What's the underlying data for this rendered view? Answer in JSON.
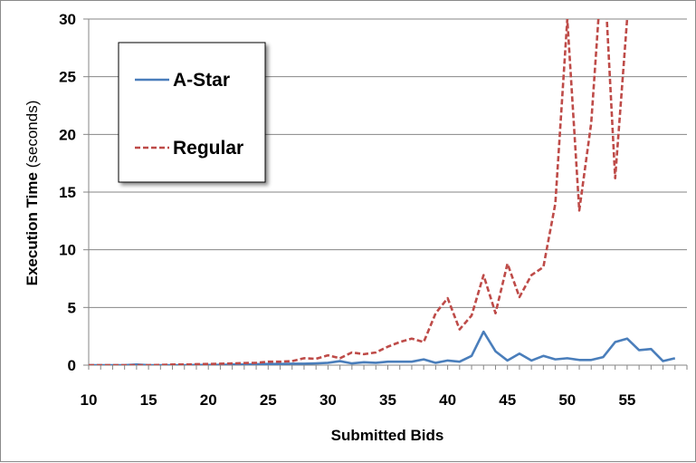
{
  "chart_data": {
    "type": "line",
    "title": "",
    "xlabel": "Submitted Bids",
    "ylabel_main": "Execution Time",
    "ylabel_unit": "(seconds)",
    "xlim": [
      10,
      60
    ],
    "ylim": [
      0,
      30
    ],
    "x_ticks": [
      "10",
      "15",
      "20",
      "25",
      "30",
      "35",
      "40",
      "45",
      "50",
      "55"
    ],
    "y_ticks": [
      "0",
      "5",
      "10",
      "15",
      "20",
      "25",
      "30"
    ],
    "grid": "horizontal",
    "legend_position": "top-left",
    "x": [
      10,
      11,
      12,
      13,
      14,
      15,
      16,
      17,
      18,
      19,
      20,
      21,
      22,
      23,
      24,
      25,
      26,
      27,
      28,
      29,
      30,
      31,
      32,
      33,
      34,
      35,
      36,
      37,
      38,
      39,
      40,
      41,
      42,
      43,
      44,
      45,
      46,
      47,
      48,
      49,
      50,
      51,
      52,
      53,
      54,
      55,
      56,
      57,
      58,
      59
    ],
    "series": [
      {
        "name": "A-Star",
        "color": "#4a7ebb",
        "style": "solid",
        "values": [
          0,
          0,
          0,
          0,
          0.05,
          0,
          0,
          0,
          0,
          0.02,
          0.02,
          0.03,
          0.05,
          0.05,
          0.08,
          0.1,
          0.1,
          0.12,
          0.12,
          0.15,
          0.2,
          0.35,
          0.15,
          0.25,
          0.2,
          0.3,
          0.3,
          0.3,
          0.5,
          0.2,
          0.4,
          0.3,
          0.8,
          2.9,
          1.2,
          0.4,
          1.0,
          0.4,
          0.8,
          0.5,
          0.6,
          0.45,
          0.45,
          0.7,
          2.0,
          2.3,
          1.3,
          1.4,
          0.35,
          0.6
        ]
      },
      {
        "name": "Regular",
        "color": "#be4b48",
        "style": "dashed",
        "values": [
          0,
          0,
          0,
          0,
          0,
          0,
          0.02,
          0.05,
          0.05,
          0.08,
          0.1,
          0.12,
          0.15,
          0.18,
          0.2,
          0.3,
          0.3,
          0.35,
          0.6,
          0.55,
          0.85,
          0.6,
          1.1,
          0.95,
          1.1,
          1.6,
          2.0,
          2.3,
          2.0,
          4.5,
          5.8,
          3.1,
          4.3,
          7.8,
          4.5,
          8.8,
          5.9,
          7.8,
          8.5,
          14,
          30,
          13.4,
          21,
          36,
          16.2,
          30,
          null,
          null,
          null,
          null
        ]
      }
    ]
  }
}
